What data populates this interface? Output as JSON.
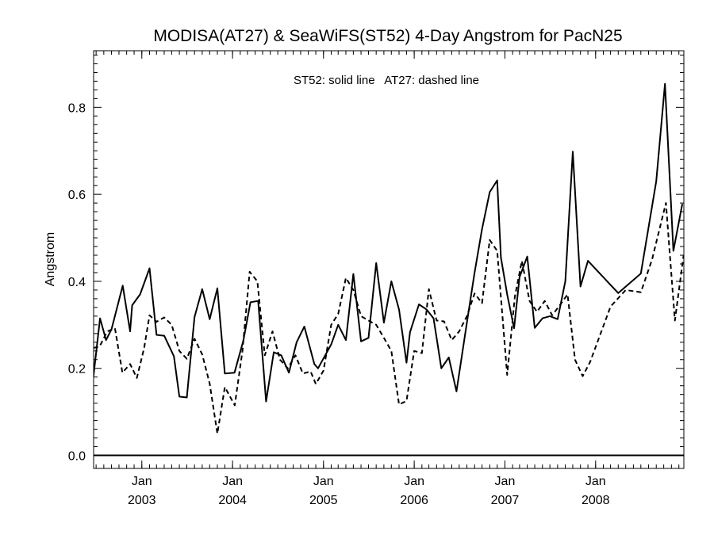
{
  "chart_data": {
    "type": "line",
    "title": "MODISA(AT27) & SeaWiFS(ST52) 4-Day Angstrom for PacN25",
    "annotation": "ST52: solid line   AT27: dashed line",
    "xlabel": "",
    "ylabel": "Angstrom",
    "ylim": [
      -0.03,
      0.93
    ],
    "xlim": [
      "2002-06-21",
      "2008-12-21"
    ],
    "grid": false,
    "y_ticks": [
      0.0,
      0.2,
      0.4,
      0.6,
      0.8
    ],
    "y_tick_labels": [
      "0.0",
      "0.2",
      "0.4",
      "0.6",
      "0.8"
    ],
    "x_ticks": [
      {
        "date": "2003-01-01",
        "month": "Jan",
        "year": "2003"
      },
      {
        "date": "2004-01-01",
        "month": "Jan",
        "year": "2004"
      },
      {
        "date": "2005-01-01",
        "month": "Jan",
        "year": "2005"
      },
      {
        "date": "2006-01-01",
        "month": "Jan",
        "year": "2006"
      },
      {
        "date": "2007-01-01",
        "month": "Jan",
        "year": "2007"
      },
      {
        "date": "2008-01-01",
        "month": "Jan",
        "year": "2008"
      }
    ],
    "zero_line": 0.0,
    "series": [
      {
        "name": "ST52",
        "style": "solid",
        "color": "#000000",
        "points": [
          [
            "2002-06-20",
            0.18
          ],
          [
            "2002-07-17",
            0.315
          ],
          [
            "2002-08-10",
            0.265
          ],
          [
            "2002-09-01",
            0.29
          ],
          [
            "2002-10-16",
            0.39
          ],
          [
            "2002-11-15",
            0.285
          ],
          [
            "2002-11-23",
            0.345
          ],
          [
            "2002-12-25",
            0.37
          ],
          [
            "2003-02-01",
            0.43
          ],
          [
            "2003-03-01",
            0.277
          ],
          [
            "2003-04-01",
            0.275
          ],
          [
            "2003-05-10",
            0.228
          ],
          [
            "2003-06-01",
            0.135
          ],
          [
            "2003-07-01",
            0.133
          ],
          [
            "2003-08-01",
            0.318
          ],
          [
            "2003-09-01",
            0.382
          ],
          [
            "2003-10-01",
            0.313
          ],
          [
            "2003-11-01",
            0.384
          ],
          [
            "2003-12-01",
            0.188
          ],
          [
            "2004-01-09",
            0.19
          ],
          [
            "2004-02-14",
            0.265
          ],
          [
            "2004-03-13",
            0.352
          ],
          [
            "2004-04-13",
            0.355
          ],
          [
            "2004-05-15",
            0.124
          ],
          [
            "2004-06-15",
            0.237
          ],
          [
            "2004-07-15",
            0.23
          ],
          [
            "2004-08-15",
            0.19
          ],
          [
            "2004-09-15",
            0.26
          ],
          [
            "2004-10-16",
            0.296
          ],
          [
            "2004-11-25",
            0.21
          ],
          [
            "2004-12-10",
            0.2
          ],
          [
            "2005-02-01",
            0.255
          ],
          [
            "2005-03-01",
            0.3
          ],
          [
            "2005-04-01",
            0.265
          ],
          [
            "2005-05-01",
            0.417
          ],
          [
            "2005-06-01",
            0.262
          ],
          [
            "2005-07-01",
            0.27
          ],
          [
            "2005-08-01",
            0.442
          ],
          [
            "2005-09-01",
            0.305
          ],
          [
            "2005-10-01",
            0.4
          ],
          [
            "2005-11-01",
            0.335
          ],
          [
            "2005-12-01",
            0.213
          ],
          [
            "2005-12-15",
            0.283
          ],
          [
            "2006-01-20",
            0.347
          ],
          [
            "2006-02-20",
            0.335
          ],
          [
            "2006-03-20",
            0.315
          ],
          [
            "2006-04-20",
            0.2
          ],
          [
            "2006-05-20",
            0.225
          ],
          [
            "2006-06-20",
            0.147
          ],
          [
            "2006-08-01",
            0.305
          ],
          [
            "2006-09-01",
            0.42
          ],
          [
            "2006-10-01",
            0.52
          ],
          [
            "2006-11-01",
            0.605
          ],
          [
            "2006-12-01",
            0.632
          ],
          [
            "2006-12-16",
            0.455
          ],
          [
            "2007-01-10",
            0.37
          ],
          [
            "2007-02-07",
            0.292
          ],
          [
            "2007-03-01",
            0.41
          ],
          [
            "2007-04-01",
            0.457
          ],
          [
            "2007-05-01",
            0.293
          ],
          [
            "2007-06-01",
            0.315
          ],
          [
            "2007-07-01",
            0.32
          ],
          [
            "2007-08-01",
            0.313
          ],
          [
            "2007-09-01",
            0.4
          ],
          [
            "2007-10-01",
            0.698
          ],
          [
            "2007-11-01",
            0.388
          ],
          [
            "2007-12-01",
            0.447
          ],
          [
            "2008-04-01",
            0.373
          ],
          [
            "2008-07-01",
            0.418
          ],
          [
            "2008-09-01",
            0.63
          ],
          [
            "2008-10-06",
            0.854
          ],
          [
            "2008-11-09",
            0.47
          ],
          [
            "2008-12-15",
            0.578
          ]
        ]
      },
      {
        "name": "AT27",
        "style": "dashed",
        "color": "#000000",
        "points": [
          [
            "2002-06-20",
            0.247
          ],
          [
            "2002-07-15",
            0.25
          ],
          [
            "2002-08-15",
            0.285
          ],
          [
            "2002-09-15",
            0.292
          ],
          [
            "2002-10-15",
            0.19
          ],
          [
            "2002-11-15",
            0.21
          ],
          [
            "2002-12-12",
            0.178
          ],
          [
            "2003-01-10",
            0.246
          ],
          [
            "2003-02-01",
            0.322
          ],
          [
            "2003-03-01",
            0.307
          ],
          [
            "2003-04-01",
            0.317
          ],
          [
            "2003-05-01",
            0.3
          ],
          [
            "2003-06-01",
            0.24
          ],
          [
            "2003-07-01",
            0.222
          ],
          [
            "2003-08-01",
            0.268
          ],
          [
            "2003-09-01",
            0.232
          ],
          [
            "2003-10-01",
            0.165
          ],
          [
            "2003-11-01",
            0.05
          ],
          [
            "2003-12-01",
            0.157
          ],
          [
            "2004-01-10",
            0.115
          ],
          [
            "2004-02-10",
            0.24
          ],
          [
            "2004-03-10",
            0.422
          ],
          [
            "2004-04-10",
            0.4
          ],
          [
            "2004-05-10",
            0.23
          ],
          [
            "2004-06-10",
            0.285
          ],
          [
            "2004-07-10",
            0.22
          ],
          [
            "2004-08-10",
            0.2
          ],
          [
            "2004-09-10",
            0.23
          ],
          [
            "2004-10-10",
            0.188
          ],
          [
            "2004-11-10",
            0.193
          ],
          [
            "2004-12-01",
            0.164
          ],
          [
            "2005-01-01",
            0.195
          ],
          [
            "2005-02-01",
            0.3
          ],
          [
            "2005-03-01",
            0.325
          ],
          [
            "2005-04-01",
            0.408
          ],
          [
            "2005-05-01",
            0.38
          ],
          [
            "2005-06-01",
            0.32
          ],
          [
            "2005-07-01",
            0.31
          ],
          [
            "2005-08-01",
            0.3
          ],
          [
            "2005-09-01",
            0.27
          ],
          [
            "2005-10-01",
            0.24
          ],
          [
            "2005-11-01",
            0.117
          ],
          [
            "2005-12-01",
            0.125
          ],
          [
            "2006-01-01",
            0.24
          ],
          [
            "2006-02-01",
            0.235
          ],
          [
            "2006-03-01",
            0.382
          ],
          [
            "2006-04-01",
            0.31
          ],
          [
            "2006-05-01",
            0.308
          ],
          [
            "2006-06-01",
            0.265
          ],
          [
            "2006-07-01",
            0.285
          ],
          [
            "2006-08-01",
            0.32
          ],
          [
            "2006-09-01",
            0.372
          ],
          [
            "2006-10-01",
            0.35
          ],
          [
            "2006-11-01",
            0.495
          ],
          [
            "2006-12-01",
            0.47
          ],
          [
            "2007-01-10",
            0.185
          ],
          [
            "2007-02-10",
            0.365
          ],
          [
            "2007-03-10",
            0.447
          ],
          [
            "2007-04-10",
            0.355
          ],
          [
            "2007-05-10",
            0.33
          ],
          [
            "2007-06-10",
            0.355
          ],
          [
            "2007-07-10",
            0.322
          ],
          [
            "2007-08-10",
            0.345
          ],
          [
            "2007-09-10",
            0.37
          ],
          [
            "2007-10-10",
            0.22
          ],
          [
            "2007-11-10",
            0.182
          ],
          [
            "2007-12-10",
            0.215
          ],
          [
            "2008-03-01",
            0.342
          ],
          [
            "2008-05-01",
            0.38
          ],
          [
            "2008-07-01",
            0.375
          ],
          [
            "2008-08-15",
            0.45
          ],
          [
            "2008-10-10",
            0.58
          ],
          [
            "2008-11-15",
            0.31
          ],
          [
            "2008-12-20",
            0.46
          ]
        ]
      }
    ]
  }
}
